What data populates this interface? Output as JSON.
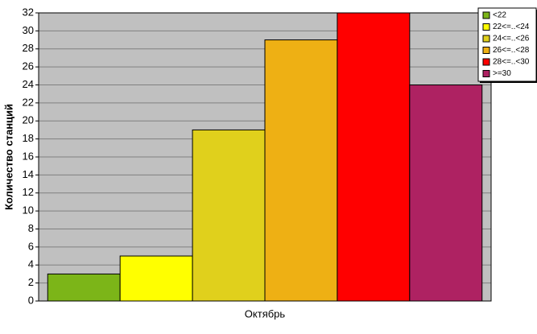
{
  "chart_data": {
    "type": "bar",
    "y_label": "Количество станций",
    "categories": [
      "Октябрь"
    ],
    "series": [
      {
        "name": "<22",
        "color": "#7cb518",
        "values": [
          3
        ]
      },
      {
        "name": "22<=..<24",
        "color": "#ffff00",
        "values": [
          5
        ]
      },
      {
        "name": "24<=..<26",
        "color": "#e0d01c",
        "values": [
          19
        ]
      },
      {
        "name": "26<=..<28",
        "color": "#eeb014",
        "values": [
          29
        ]
      },
      {
        "name": "28<=..<30",
        "color": "#ff0000",
        "values": [
          32
        ]
      },
      {
        "name": ">=30",
        "color": "#ae2262",
        "values": [
          24
        ]
      }
    ],
    "ylim": [
      0,
      32
    ],
    "yticks": [
      0,
      2,
      4,
      6,
      8,
      10,
      12,
      14,
      16,
      18,
      20,
      22,
      24,
      26,
      28,
      30,
      32
    ],
    "grid": true,
    "legend": "top-right"
  }
}
